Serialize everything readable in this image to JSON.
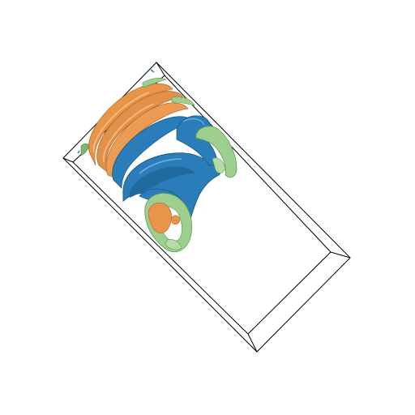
{
  "scene": {
    "description_shown": "",
    "background_color": "#ffffff",
    "frame_color": "#000000",
    "surfaces": [
      {
        "name": "orange-isosurface",
        "color": "#e8954a"
      },
      {
        "name": "blue-isosurface",
        "color": "#2a7db8"
      },
      {
        "name": "green-isosurface",
        "color": "#9fcf8f"
      }
    ]
  }
}
